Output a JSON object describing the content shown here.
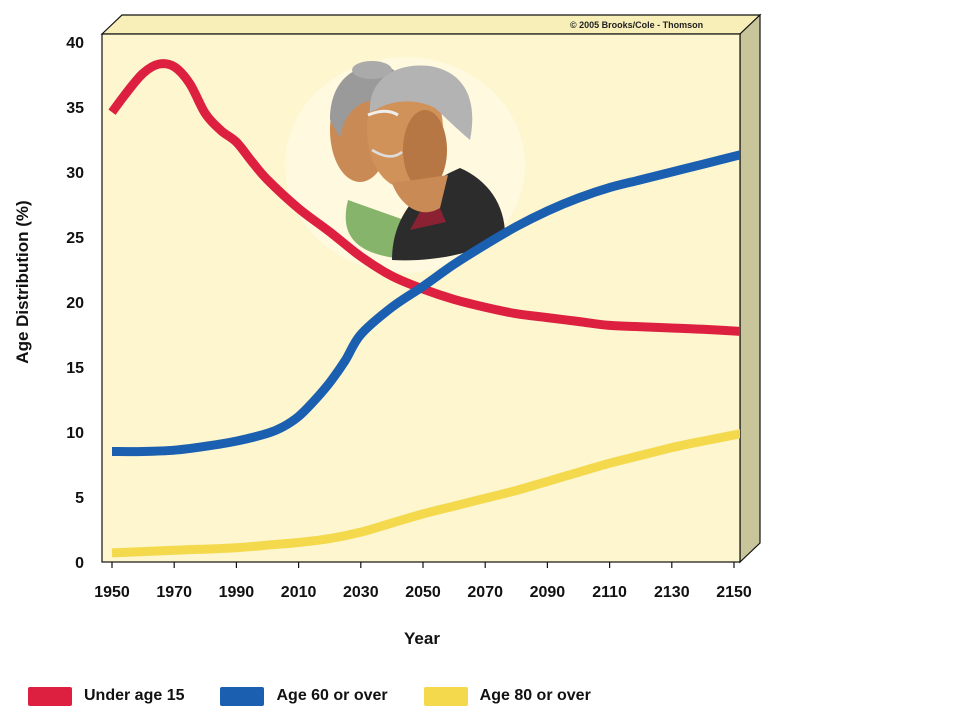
{
  "credit": "© 2005 Brooks/Cole - Thomson",
  "illustration": "elderly-couple-portrait",
  "chart_data": {
    "type": "line",
    "xlabel": "Year",
    "ylabel": "Age Distribution (%)",
    "xlim": [
      1950,
      2155
    ],
    "ylim": [
      0,
      40
    ],
    "x_ticks": [
      "1950",
      "1970",
      "1990",
      "2010",
      "2030",
      "2050",
      "2070",
      "2090",
      "2110",
      "2130",
      "2150"
    ],
    "y_ticks": [
      "0",
      "5",
      "10",
      "15",
      "20",
      "25",
      "30",
      "35",
      "40"
    ],
    "plot_background": "#fdf6cf",
    "legend_position": "bottom",
    "series": [
      {
        "name": "Under age 15",
        "color": "#dd2040",
        "x": [
          1950,
          1955,
          1960,
          1965,
          1970,
          1975,
          1980,
          1985,
          1990,
          1995,
          2000,
          2010,
          2020,
          2030,
          2040,
          2050,
          2060,
          2070,
          2080,
          2090,
          2100,
          2110,
          2120,
          2130,
          2140,
          2155
        ],
        "y": [
          34.6,
          36.2,
          37.6,
          38.3,
          38.1,
          36.8,
          34.5,
          33.2,
          32.3,
          30.8,
          29.4,
          27.2,
          25.4,
          23.5,
          22.0,
          21.0,
          20.2,
          19.6,
          19.1,
          18.8,
          18.5,
          18.2,
          18.1,
          18.0,
          17.9,
          17.7
        ]
      },
      {
        "name": "Age 60 or over",
        "color": "#1a5fb0",
        "x": [
          1950,
          1960,
          1970,
          1980,
          1990,
          2000,
          2005,
          2010,
          2015,
          2020,
          2025,
          2030,
          2040,
          2050,
          2060,
          2070,
          2080,
          2090,
          2100,
          2110,
          2120,
          2130,
          2140,
          2155
        ],
        "y": [
          8.5,
          8.5,
          8.6,
          8.9,
          9.3,
          9.9,
          10.4,
          11.2,
          12.4,
          13.8,
          15.5,
          17.5,
          19.6,
          21.2,
          22.9,
          24.4,
          25.8,
          27.0,
          28.0,
          28.8,
          29.4,
          30.0,
          30.6,
          31.5
        ]
      },
      {
        "name": "Age 80 or over",
        "color": "#f4d94c",
        "x": [
          1950,
          1970,
          1990,
          2000,
          2010,
          2020,
          2030,
          2040,
          2050,
          2060,
          2070,
          2080,
          2090,
          2100,
          2110,
          2120,
          2130,
          2140,
          2155
        ],
        "y": [
          0.7,
          0.9,
          1.1,
          1.3,
          1.5,
          1.8,
          2.3,
          3.0,
          3.7,
          4.3,
          4.9,
          5.5,
          6.2,
          6.9,
          7.6,
          8.2,
          8.8,
          9.3,
          10.0
        ]
      }
    ]
  }
}
